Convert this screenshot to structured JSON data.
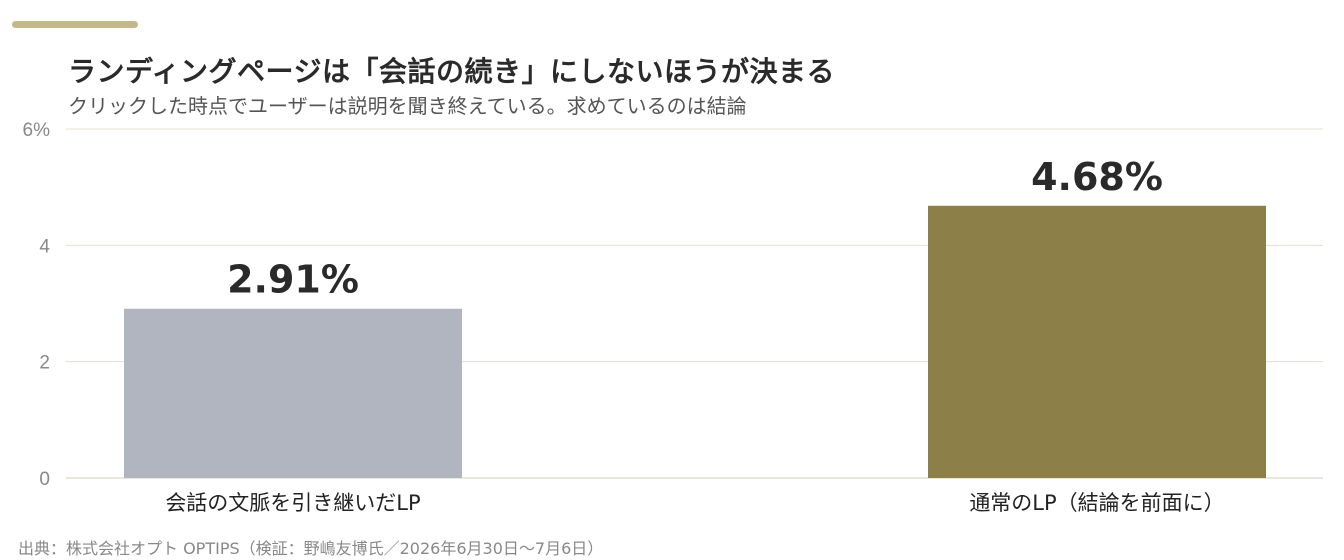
{
  "title": "ランディングページは「会話の続き」にしないほうが決まる",
  "subtitle": "クリックした時点でユーザーは説明を聞き終えている。求めているのは結論",
  "source": "出典：株式会社オプト OPTIPS（検証：野嶋友博氏／2026年6月30日〜7月6日）",
  "colors": {
    "accent": "#c4b88a",
    "grid": "#e4e0cf",
    "axis_text": "#888888",
    "label_text": "#222222",
    "value_text": "#2a2a2a"
  },
  "chart_data": {
    "type": "bar",
    "categories": [
      "会話の文脈を引き継いだLP",
      "通常のLP（結論を前面に）"
    ],
    "values": [
      2.91,
      4.68
    ],
    "value_labels": [
      "2.91%",
      "4.68%"
    ],
    "bar_colors": [
      "#b1b5bf",
      "#8c7f47"
    ],
    "ylim": [
      0,
      6
    ],
    "yticks": [
      0,
      2,
      4,
      6
    ],
    "ytick_labels": [
      "0",
      "2",
      "4",
      "6%"
    ],
    "grid": true,
    "legend": "none"
  }
}
